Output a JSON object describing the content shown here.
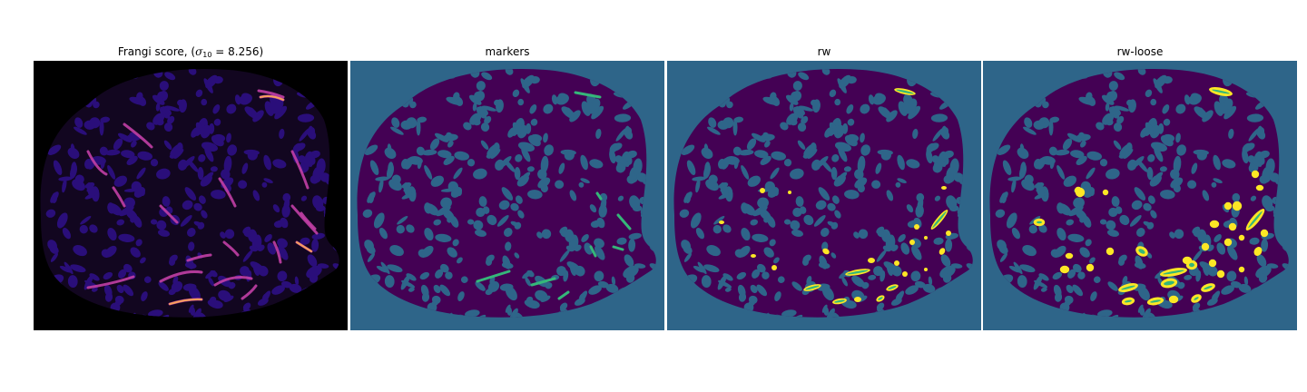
{
  "figure": {
    "panels": [
      {
        "id": "frangi",
        "title_prefix": "Frangi score, (",
        "sigma_symbol": "σ",
        "sigma_sub": "10",
        "title_suffix": " = 8.256)"
      },
      {
        "id": "markers",
        "title": "markers"
      },
      {
        "id": "rw",
        "title": "rw"
      },
      {
        "id": "rw-loose",
        "title": "rw-loose"
      }
    ]
  },
  "colors": {
    "black_bg": "#000000",
    "teal_bg": "#2e6589",
    "tissue_purple": "#440154",
    "frangi_blob": "#2a0e7a",
    "frangi_vessel_magenta": "#c23fa5",
    "frangi_vessel_orange": "#f6a15b",
    "marker_green": "#35b779",
    "seg_yellow": "#fde725"
  }
}
